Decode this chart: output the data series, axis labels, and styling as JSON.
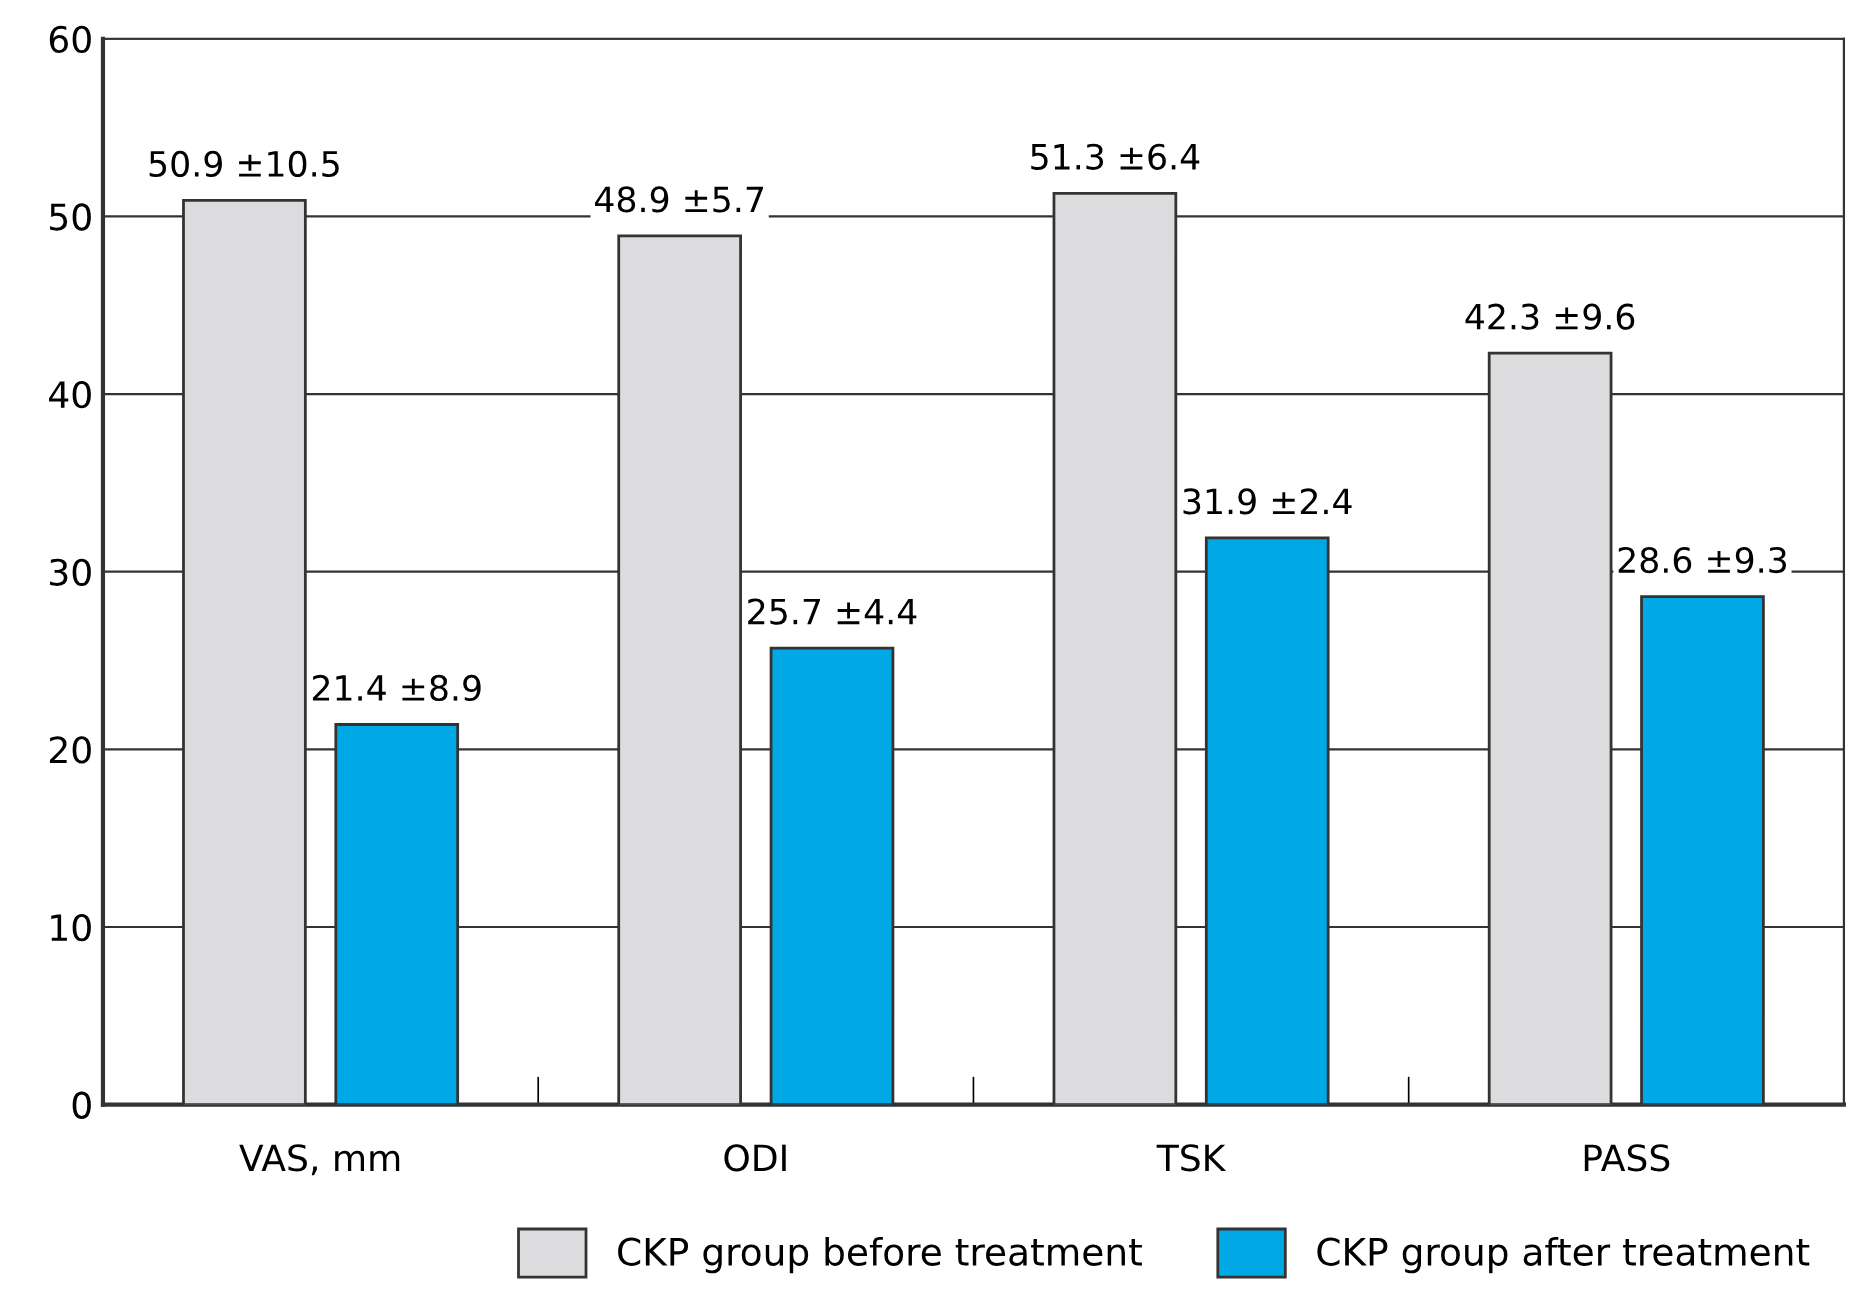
{
  "chart_data": {
    "type": "bar",
    "categories": [
      "VAS, mm",
      "ODI",
      "TSK",
      "PASS"
    ],
    "series": [
      {
        "name": "CKP group before treatment",
        "color": "#dcdcde",
        "values": [
          50.9,
          48.9,
          51.3,
          42.3
        ],
        "value_labels": [
          "50.9 ±10.5",
          "48.9 ±5.7",
          "51.3 ±6.4",
          "42.3 ±9.6"
        ]
      },
      {
        "name": "CKP group after treatment",
        "color": "#00a9e6",
        "values": [
          21.4,
          25.7,
          31.9,
          28.6
        ],
        "value_labels": [
          "21.4 ±8.9",
          "25.7 ±4.4",
          "31.9 ±2.4",
          "28.6 ±9.3"
        ]
      }
    ],
    "ylim": [
      0,
      60
    ],
    "yticks": [
      0,
      10,
      20,
      30,
      40,
      50,
      60
    ],
    "grid": "y",
    "legend": "bottom"
  }
}
